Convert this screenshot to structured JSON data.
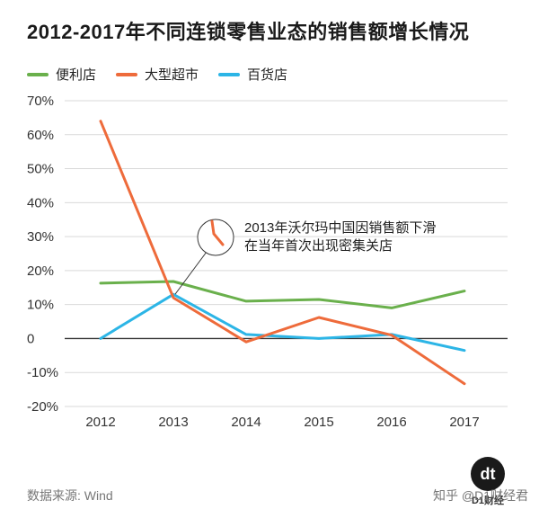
{
  "title": "2012-2017年不同连锁零售业态的销售额增长情况",
  "source": "数据来源: Wind",
  "credit": "知乎 @D1财经君",
  "brand": {
    "logo_text": "dt",
    "name": "D1财经"
  },
  "chart_data": {
    "type": "line",
    "categories": [
      "2012",
      "2013",
      "2014",
      "2015",
      "2016",
      "2017"
    ],
    "series": [
      {
        "name": "便利店",
        "color": "#6ab04c",
        "values": [
          16.3,
          16.8,
          11.0,
          11.5,
          9.0,
          14.0
        ]
      },
      {
        "name": "大型超市",
        "color": "#ee6b3b",
        "values": [
          64.0,
          12.0,
          -1.0,
          6.2,
          1.0,
          -13.3
        ]
      },
      {
        "name": "百货店",
        "color": "#2cb5e6",
        "values": [
          0.0,
          13.0,
          1.2,
          0.0,
          1.2,
          -3.5
        ]
      }
    ],
    "ylim": [
      -20,
      70
    ],
    "yticks": [
      70,
      60,
      50,
      40,
      30,
      20,
      10,
      0,
      -10,
      -20
    ],
    "ytick_labels": [
      "70%",
      "60%",
      "50%",
      "40%",
      "30%",
      "20%",
      "10%",
      "0",
      "-10%",
      "-20%"
    ],
    "grid": "horizontal",
    "legend_position": "top-left",
    "annotation": {
      "lines": [
        "2013年沃尔玛中国因销售额下滑",
        "在当年首次出现密集关店"
      ],
      "target_category": "2013",
      "target_value": 12.0
    }
  }
}
